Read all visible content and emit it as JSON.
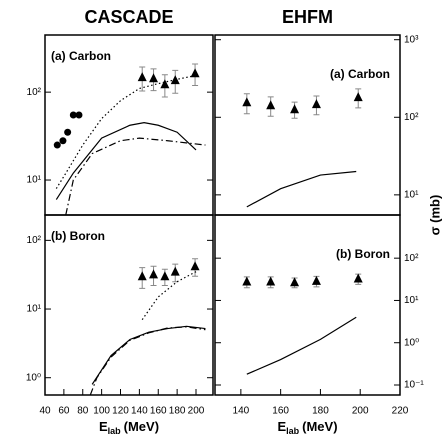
{
  "chart_data": [
    {
      "type": "line",
      "title": "CASCADE",
      "annotation": "(a) Carbon",
      "xlim": [
        40,
        218
      ],
      "ylim": [
        4,
        447
      ],
      "log_y": true,
      "yticks": [
        {
          "value": 10,
          "label": "10¹"
        },
        {
          "value": 100,
          "label": "10²"
        }
      ],
      "series": [
        {
          "marker": "triangle",
          "color": "#000000",
          "x": [
            143,
            155,
            167,
            178,
            199
          ],
          "values": [
            148,
            144,
            123,
            137,
            164
          ],
          "errors": [
            45,
            40,
            35,
            40,
            45
          ]
        },
        {
          "marker": "circle",
          "color": "#000000",
          "x": [
            53,
            59,
            64,
            70,
            76
          ],
          "values": [
            25,
            28,
            35,
            55,
            55
          ]
        },
        {
          "line": "dotted",
          "color": "#000000",
          "x": [
            52,
            60,
            80,
            100,
            120,
            140,
            160,
            180,
            200
          ],
          "values": [
            8,
            11,
            25,
            50,
            80,
            110,
            125,
            140,
            155
          ]
        },
        {
          "line": "solid",
          "color": "#000000",
          "x": [
            52,
            70,
            100,
            130,
            145,
            160,
            180,
            200
          ],
          "values": [
            6,
            12,
            30,
            42,
            45,
            42,
            35,
            22
          ]
        },
        {
          "line": "dashdot",
          "color": "#000000",
          "x": [
            62,
            70,
            90,
            120,
            140,
            170,
            210
          ],
          "values": [
            4,
            10,
            20,
            28,
            30,
            28,
            25
          ]
        }
      ]
    },
    {
      "type": "line",
      "title": "EHFM",
      "annotation": "(a) Carbon",
      "y_label": "σ (mb)",
      "xlim": [
        127,
        220
      ],
      "ylim": [
        5.5,
        1150
      ],
      "log_y": true,
      "yticks": [
        {
          "value": 10,
          "label": "10¹"
        },
        {
          "value": 100,
          "label": "10²"
        },
        {
          "value": 1000,
          "label": "10³"
        }
      ],
      "series": [
        {
          "marker": "triangle",
          "color": "#000000",
          "x": [
            143,
            155,
            167,
            178,
            199
          ],
          "values": [
            156,
            143,
            127,
            148,
            182
          ],
          "errors": [
            45,
            40,
            30,
            40,
            50
          ]
        },
        {
          "line": "solid",
          "color": "#000000",
          "x": [
            143,
            160,
            180,
            198
          ],
          "values": [
            7,
            12,
            18,
            20
          ]
        }
      ]
    },
    {
      "type": "line",
      "annotation": "(b) Boron",
      "x_label": "E",
      "x_label_sub": "lab",
      "x_label_unit": "(MeV)",
      "xlim": [
        40,
        218
      ],
      "ylim": [
        0.56,
        234
      ],
      "log_y": true,
      "xticks": [
        40,
        60,
        80,
        100,
        120,
        140,
        160,
        180,
        200
      ],
      "yticks": [
        {
          "value": 1,
          "label": "10⁰"
        },
        {
          "value": 10,
          "label": "10¹"
        },
        {
          "value": 100,
          "label": "10²"
        }
      ],
      "series": [
        {
          "marker": "triangle",
          "color": "#000000",
          "x": [
            143,
            155,
            167,
            178,
            199
          ],
          "values": [
            30,
            32,
            30,
            35,
            42
          ],
          "errors": [
            10,
            10,
            8,
            10,
            12
          ]
        },
        {
          "line": "dotted",
          "color": "#000000",
          "x": [
            143,
            160,
            180,
            200
          ],
          "values": [
            7,
            15,
            25,
            35
          ]
        },
        {
          "line": "dashdot",
          "color": "#000000",
          "x": [
            88,
            95,
            110,
            130,
            150,
            170,
            190,
            210
          ],
          "values": [
            0.56,
            1,
            2,
            3.5,
            4.5,
            5.3,
            5.5,
            5
          ]
        },
        {
          "line": "solid",
          "color": "#000000",
          "x": [
            90,
            110,
            130,
            150,
            170,
            190,
            210
          ],
          "values": [
            0.8,
            2.1,
            3.6,
            4.6,
            5.2,
            5.6,
            5.2
          ]
        }
      ]
    },
    {
      "type": "line",
      "annotation": "(b) Boron",
      "x_label": "E",
      "x_label_sub": "lab",
      "x_label_unit": "(MeV)",
      "xlim": [
        127,
        220
      ],
      "ylim": [
        0.058,
        1050
      ],
      "log_y": true,
      "xticks": [
        140,
        160,
        180,
        200,
        220
      ],
      "yticks": [
        {
          "value": 0.1,
          "label": "10⁻¹"
        },
        {
          "value": 1,
          "label": "10⁰"
        },
        {
          "value": 10,
          "label": "10¹"
        },
        {
          "value": 100,
          "label": "10²"
        }
      ],
      "series": [
        {
          "marker": "triangle",
          "color": "#000000",
          "x": [
            143,
            155,
            167,
            178,
            199
          ],
          "values": [
            28,
            28,
            27,
            29,
            33
          ],
          "errors": [
            8,
            8,
            7,
            8,
            9
          ]
        },
        {
          "line": "solid",
          "color": "#000000",
          "x": [
            143,
            160,
            180,
            198
          ],
          "values": [
            0.18,
            0.4,
            1.2,
            4
          ]
        }
      ]
    }
  ]
}
